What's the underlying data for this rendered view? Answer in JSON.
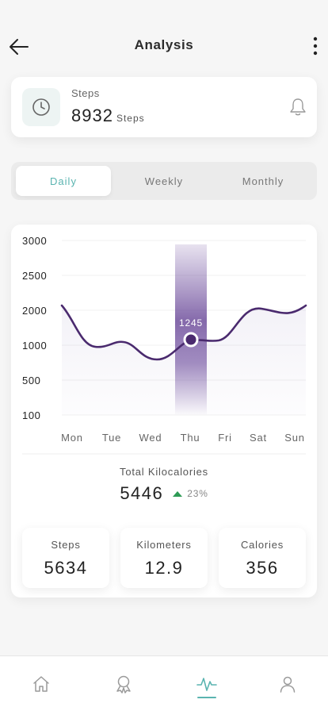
{
  "header": {
    "title": "Analysis",
    "back_icon": "arrow-left-icon",
    "more_icon": "more-vertical-icon"
  },
  "steps_card": {
    "label": "Steps",
    "value": "8932",
    "unit": "Steps",
    "icon": "clock-icon",
    "notification_icon": "bell-icon"
  },
  "tabs": [
    {
      "label": "Daily",
      "active": true
    },
    {
      "label": "Weekly",
      "active": false
    },
    {
      "label": "Monthly",
      "active": false
    }
  ],
  "chart_data": {
    "type": "line",
    "categories": [
      "Mon",
      "Tue",
      "Wed",
      "Thu",
      "Fri",
      "Sat",
      "Sun"
    ],
    "y_ticks": [
      "3000",
      "2500",
      "2000",
      "1000",
      "500",
      "100"
    ],
    "highlight": {
      "category": "Thu",
      "label": "1245"
    },
    "line_color": "#4a2a6e",
    "highlight_color": "#7a5ba6",
    "grid": true
  },
  "kilocalories": {
    "label": "Total Kilocalories",
    "value": "5446",
    "change": "23%",
    "trend": "up",
    "trend_color": "#2e9b55"
  },
  "stats": [
    {
      "label": "Steps",
      "value": "5634"
    },
    {
      "label": "Kilometers",
      "value": "12.9"
    },
    {
      "label": "Calories",
      "value": "356"
    }
  ],
  "bottom_nav": [
    {
      "icon": "home-icon",
      "active": false
    },
    {
      "icon": "award-icon",
      "active": false
    },
    {
      "icon": "activity-icon",
      "active": true
    },
    {
      "icon": "user-icon",
      "active": false
    }
  ],
  "colors": {
    "accent": "#5ab4b0",
    "primary": "#4a2a6e"
  }
}
